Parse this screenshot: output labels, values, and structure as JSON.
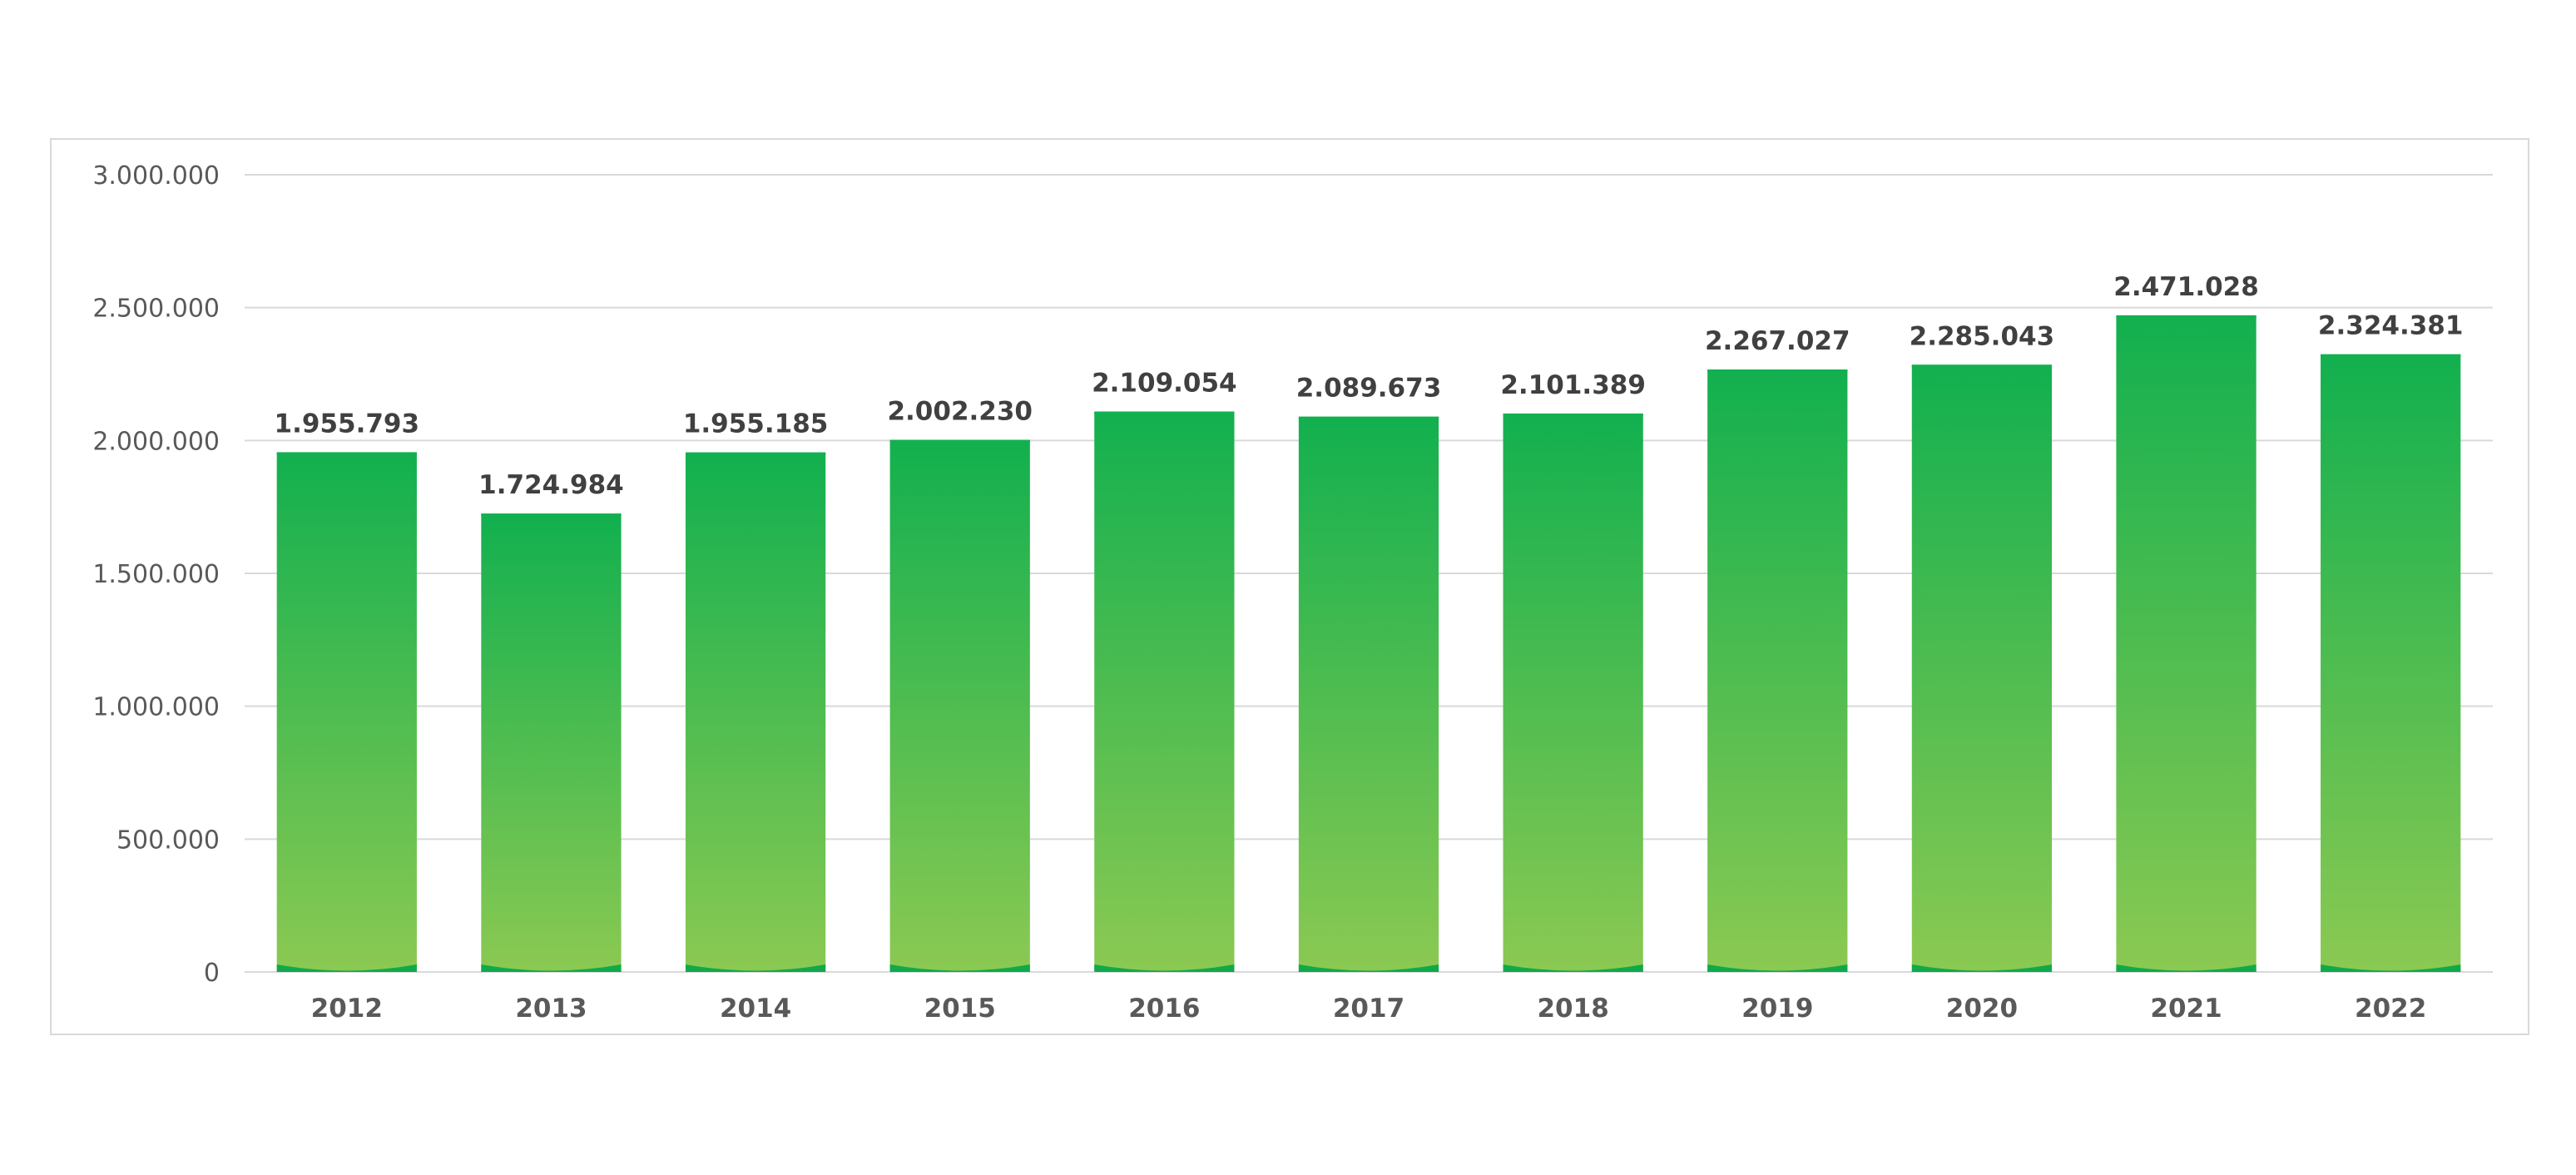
{
  "chart_data": {
    "type": "bar",
    "categories": [
      "2012",
      "2013",
      "2014",
      "2015",
      "2016",
      "2017",
      "2018",
      "2019",
      "2020",
      "2021",
      "2022"
    ],
    "values": [
      1955793,
      1724984,
      1955185,
      2002230,
      2109054,
      2089673,
      2101389,
      2267027,
      2285043,
      2471028,
      2324381
    ],
    "value_labels": [
      "1.955.793",
      "1.724.984",
      "1.955.185",
      "2.002.230",
      "2.109.054",
      "2.089.673",
      "2.101.389",
      "2.267.027",
      "2.285.043",
      "2.471.028",
      "2.324.381"
    ],
    "y_ticks": [
      0,
      500000,
      1000000,
      1500000,
      2000000,
      2500000,
      3000000
    ],
    "y_tick_labels": [
      "0",
      "500.000",
      "1.000.000",
      "1.500.000",
      "2.000.000",
      "2.500.000",
      "3.000.000"
    ],
    "ylim": [
      0,
      3000000
    ],
    "title": "",
    "xlabel": "",
    "ylabel": "",
    "grid": true,
    "legend": "none",
    "colors": {
      "bar_top": "#12b04f",
      "bar_bottom": "#8bc952",
      "bar_base": "#10a94a",
      "grid": "#d9d9d9",
      "axis": "#d9d9d9"
    }
  }
}
